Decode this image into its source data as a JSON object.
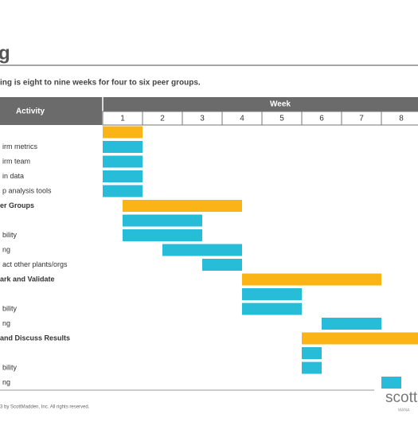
{
  "header": {
    "title": "g",
    "subtitle": "ing is eight to nine weeks for four to six peer groups."
  },
  "table": {
    "activity_header": "Activity",
    "week_header": "Week",
    "weeks": [
      "1",
      "2",
      "3",
      "4",
      "5",
      "6",
      "7",
      "8"
    ],
    "colors": {
      "phase": "#fbb415",
      "task": "#27bcd8"
    },
    "rows": [
      {
        "label": null,
        "kind": "phase",
        "start": 0,
        "end": 1
      },
      {
        "label": "irm metrics",
        "kind": "task",
        "start": 0,
        "end": 1
      },
      {
        "label": "irm team",
        "kind": "task",
        "start": 0,
        "end": 1
      },
      {
        "label": "in data",
        "kind": "task",
        "start": 0,
        "end": 1
      },
      {
        "label": "p analysis tools",
        "kind": "task",
        "start": 0,
        "end": 1
      },
      {
        "label": "er Groups",
        "kind": "phase",
        "start": 0.5,
        "end": 3.5
      },
      {
        "label": null,
        "kind": "task",
        "start": 0.5,
        "end": 2.5
      },
      {
        "label": "bility",
        "kind": "task",
        "start": 0.5,
        "end": 2.5
      },
      {
        "label": "ng",
        "kind": "task",
        "start": 1.5,
        "end": 3.5
      },
      {
        "label": "act other plants/orgs",
        "kind": "task",
        "start": 2.5,
        "end": 3.5
      },
      {
        "label": "ark and Validate",
        "kind": "phase",
        "start": 3.5,
        "end": 7
      },
      {
        "label": null,
        "kind": "task",
        "start": 3.5,
        "end": 5
      },
      {
        "label": "bility",
        "kind": "task",
        "start": 3.5,
        "end": 5
      },
      {
        "label": "ng",
        "kind": "task",
        "start": 5.5,
        "end": 7
      },
      {
        "label": "and Discuss Results",
        "kind": "phase",
        "start": 5,
        "end": 8
      },
      {
        "label": null,
        "kind": "task",
        "start": 5,
        "end": 5.5
      },
      {
        "label": "bility",
        "kind": "task",
        "start": 5,
        "end": 5.5
      },
      {
        "label": "ng",
        "kind": "task",
        "start": 7,
        "end": 7.5
      }
    ]
  },
  "footer": {
    "copyright": "3 by ScottMadden, Inc. All rights reserved.",
    "logo": "scott",
    "logo_sub": "MANA"
  }
}
